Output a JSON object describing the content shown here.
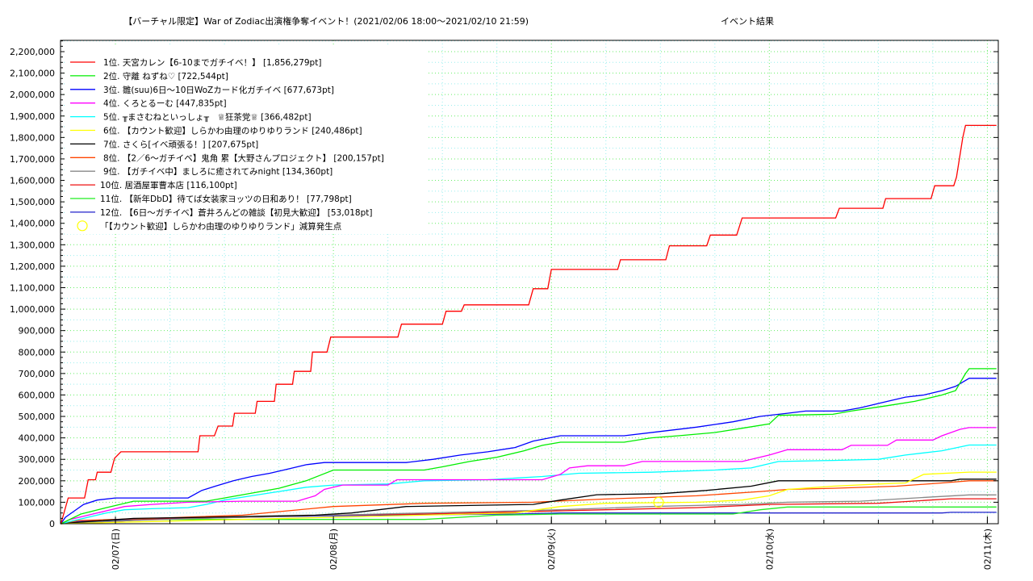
{
  "chart_data": {
    "type": "line",
    "title": "【バーチャル限定】War of Zodiac出演権争奪イベント！(2021/02/06 18:00〜2021/02/10 21:59)",
    "subtitle": "イベント結果",
    "xlabel": "",
    "ylabel": "",
    "x_unit": "hours since 2021/02/06 18:00",
    "xlim": [
      0,
      103.25
    ],
    "ylim": [
      0,
      2252600
    ],
    "grid": true,
    "legend_position": "top-left",
    "x_ticks": [
      {
        "h": 6,
        "label": "02/07(日)"
      },
      {
        "h": 30,
        "label": "02/08(月)"
      },
      {
        "h": 54,
        "label": "02/09(火)"
      },
      {
        "h": 78,
        "label": "02/10(水)"
      },
      {
        "h": 102,
        "label": "02/11(木)"
      }
    ],
    "y_ticks": [
      "0",
      "100,000",
      "200,000",
      "300,000",
      "400,000",
      "500,000",
      "600,000",
      "700,000",
      "800,000",
      "900,000",
      "1,000,000",
      "1,100,000",
      "1,200,000",
      "1,300,000",
      "1,400,000",
      "1,500,000",
      "1,600,000",
      "1,700,000",
      "1,800,000",
      "1,900,000",
      "2,000,000",
      "2,100,000",
      "2,200,000"
    ],
    "series": [
      {
        "name": "1位. 天宮カレン【6-10までガチイベ！】 [1,856,279pt]",
        "color": "#ff0000",
        "points": [
          [
            0,
            0
          ],
          [
            0.8,
            120000
          ],
          [
            2.6,
            120000
          ],
          [
            3,
            205000
          ],
          [
            3.8,
            205000
          ],
          [
            4,
            240000
          ],
          [
            5.5,
            240000
          ],
          [
            5.9,
            305000
          ],
          [
            6.6,
            335000
          ],
          [
            15.1,
            335000
          ],
          [
            15.3,
            410000
          ],
          [
            16.9,
            410000
          ],
          [
            17.3,
            455000
          ],
          [
            18.9,
            455000
          ],
          [
            19.1,
            515000
          ],
          [
            21.4,
            515000
          ],
          [
            21.6,
            570000
          ],
          [
            23.5,
            570000
          ],
          [
            23.7,
            650000
          ],
          [
            25.5,
            650000
          ],
          [
            25.7,
            710000
          ],
          [
            27.5,
            710000
          ],
          [
            27.7,
            800000
          ],
          [
            29.3,
            800000
          ],
          [
            29.7,
            870000
          ],
          [
            37.1,
            870000
          ],
          [
            37.5,
            930000
          ],
          [
            42,
            930000
          ],
          [
            42.4,
            990000
          ],
          [
            44.1,
            990000
          ],
          [
            44.4,
            1020000
          ],
          [
            51.5,
            1020000
          ],
          [
            52,
            1095000
          ],
          [
            53.6,
            1095000
          ],
          [
            54,
            1185000
          ],
          [
            61.3,
            1185000
          ],
          [
            61.6,
            1230000
          ],
          [
            66.6,
            1230000
          ],
          [
            67,
            1295000
          ],
          [
            71.1,
            1295000
          ],
          [
            71.5,
            1345000
          ],
          [
            74.4,
            1345000
          ],
          [
            75,
            1425000
          ],
          [
            85.3,
            1425000
          ],
          [
            85.7,
            1470000
          ],
          [
            90.5,
            1470000
          ],
          [
            90.8,
            1515000
          ],
          [
            95.8,
            1515000
          ],
          [
            96.2,
            1575000
          ],
          [
            98.3,
            1575000
          ],
          [
            98.6,
            1615000
          ],
          [
            99.3,
            1800000
          ],
          [
            99.6,
            1856279
          ],
          [
            103,
            1856279
          ]
        ]
      },
      {
        "name": "2位. 守離 ねずね♡ [722,544pt]",
        "color": "#00ee00",
        "points": [
          [
            0,
            0
          ],
          [
            2.2,
            45000
          ],
          [
            5,
            75000
          ],
          [
            8,
            105000
          ],
          [
            16,
            105000
          ],
          [
            20,
            135000
          ],
          [
            24,
            165000
          ],
          [
            27,
            200000
          ],
          [
            28.5,
            225000
          ],
          [
            30,
            250000
          ],
          [
            40,
            250000
          ],
          [
            42,
            265000
          ],
          [
            45,
            290000
          ],
          [
            48,
            310000
          ],
          [
            51,
            340000
          ],
          [
            53,
            365000
          ],
          [
            55,
            380000
          ],
          [
            62,
            380000
          ],
          [
            65,
            400000
          ],
          [
            68,
            410000
          ],
          [
            72,
            425000
          ],
          [
            75,
            445000
          ],
          [
            78,
            465000
          ],
          [
            79,
            505000
          ],
          [
            85,
            510000
          ],
          [
            87,
            525000
          ],
          [
            91,
            550000
          ],
          [
            94,
            570000
          ],
          [
            97,
            600000
          ],
          [
            98.5,
            620000
          ],
          [
            99.6,
            700000
          ],
          [
            100,
            722544
          ],
          [
            103,
            722544
          ]
        ]
      },
      {
        "name": "3位. 雛(suu)6日〜10日WoZカード化ガチイベ [677,673pt]",
        "color": "#0000ff",
        "points": [
          [
            0,
            0
          ],
          [
            0.5,
            30000
          ],
          [
            1.5,
            60000
          ],
          [
            2.5,
            90000
          ],
          [
            4,
            110000
          ],
          [
            6,
            120000
          ],
          [
            14,
            120000
          ],
          [
            15.5,
            155000
          ],
          [
            17,
            175000
          ],
          [
            19,
            200000
          ],
          [
            21,
            220000
          ],
          [
            23,
            235000
          ],
          [
            25,
            255000
          ],
          [
            27,
            275000
          ],
          [
            29,
            285000
          ],
          [
            38,
            285000
          ],
          [
            41,
            300000
          ],
          [
            44,
            320000
          ],
          [
            47,
            335000
          ],
          [
            50,
            355000
          ],
          [
            52,
            385000
          ],
          [
            55,
            410000
          ],
          [
            62,
            410000
          ],
          [
            66,
            430000
          ],
          [
            70,
            450000
          ],
          [
            74,
            475000
          ],
          [
            77,
            500000
          ],
          [
            80,
            515000
          ],
          [
            82,
            525000
          ],
          [
            86,
            525000
          ],
          [
            88,
            540000
          ],
          [
            91,
            570000
          ],
          [
            93,
            590000
          ],
          [
            95,
            600000
          ],
          [
            97,
            620000
          ],
          [
            98.5,
            640000
          ],
          [
            100,
            677673
          ],
          [
            103,
            677673
          ]
        ]
      },
      {
        "name": "4位. くろとるーむ [447,835pt]",
        "color": "#ff00ff",
        "points": [
          [
            0,
            0
          ],
          [
            1,
            20000
          ],
          [
            3,
            40000
          ],
          [
            5,
            60000
          ],
          [
            7,
            80000
          ],
          [
            10,
            90000
          ],
          [
            14,
            100000
          ],
          [
            20,
            105000
          ],
          [
            26,
            105000
          ],
          [
            28,
            130000
          ],
          [
            29,
            160000
          ],
          [
            31,
            180000
          ],
          [
            36,
            180000
          ],
          [
            37,
            205000
          ],
          [
            53,
            205000
          ],
          [
            55,
            230000
          ],
          [
            56,
            260000
          ],
          [
            58,
            270000
          ],
          [
            62,
            270000
          ],
          [
            64,
            290000
          ],
          [
            75,
            290000
          ],
          [
            78,
            320000
          ],
          [
            80,
            345000
          ],
          [
            86,
            345000
          ],
          [
            87,
            365000
          ],
          [
            91,
            365000
          ],
          [
            92,
            390000
          ],
          [
            96,
            390000
          ],
          [
            97,
            410000
          ],
          [
            99,
            440000
          ],
          [
            100,
            447835
          ],
          [
            103,
            447835
          ]
        ]
      },
      {
        "name": "5位. ╥まさむねといっしょ╥　♕狂茶党♕ [366,482pt]",
        "color": "#00ffff",
        "points": [
          [
            0,
            0
          ],
          [
            1,
            10000
          ],
          [
            3,
            30000
          ],
          [
            5,
            50000
          ],
          [
            7,
            65000
          ],
          [
            10,
            70000
          ],
          [
            14,
            75000
          ],
          [
            16,
            90000
          ],
          [
            18,
            110000
          ],
          [
            21,
            130000
          ],
          [
            24,
            150000
          ],
          [
            27,
            170000
          ],
          [
            30,
            180000
          ],
          [
            36,
            185000
          ],
          [
            40,
            200000
          ],
          [
            47,
            205000
          ],
          [
            53,
            220000
          ],
          [
            57,
            235000
          ],
          [
            65,
            240000
          ],
          [
            72,
            250000
          ],
          [
            76,
            260000
          ],
          [
            79,
            290000
          ],
          [
            85,
            295000
          ],
          [
            90,
            300000
          ],
          [
            93,
            320000
          ],
          [
            97,
            340000
          ],
          [
            100,
            366482
          ],
          [
            103,
            366482
          ]
        ]
      },
      {
        "name": "6位. 【カウント歓迎】しらかわ由理のゆりゆりランド [240,486pt]",
        "color": "#ffff00",
        "points": [
          [
            0,
            0
          ],
          [
            10,
            10000
          ],
          [
            20,
            20000
          ],
          [
            30,
            30000
          ],
          [
            40,
            40000
          ],
          [
            50,
            50000
          ],
          [
            55,
            80000
          ],
          [
            60,
            95000
          ],
          [
            70,
            100000
          ],
          [
            75,
            110000
          ],
          [
            78,
            130000
          ],
          [
            80,
            160000
          ],
          [
            85,
            175000
          ],
          [
            90,
            185000
          ],
          [
            93,
            190000
          ],
          [
            95,
            230000
          ],
          [
            100,
            240486
          ],
          [
            103,
            240486
          ]
        ]
      },
      {
        "name": "7位. さくら[イベ頑張る！] [207,675pt]",
        "color": "#000000",
        "points": [
          [
            0,
            0
          ],
          [
            3,
            10000
          ],
          [
            8,
            25000
          ],
          [
            16,
            30000
          ],
          [
            28,
            40000
          ],
          [
            32,
            50000
          ],
          [
            38,
            80000
          ],
          [
            45,
            85000
          ],
          [
            52,
            90000
          ],
          [
            55,
            110000
          ],
          [
            59,
            135000
          ],
          [
            66,
            140000
          ],
          [
            71,
            155000
          ],
          [
            76,
            175000
          ],
          [
            79,
            200000
          ],
          [
            98,
            200000
          ],
          [
            99,
            207675
          ],
          [
            103,
            207675
          ]
        ]
      },
      {
        "name": "8位. 【2／6〜ガチイベ】鬼角 累【大野さんプロジェクト】 [200,157pt]",
        "color": "#ff4500",
        "points": [
          [
            0,
            0
          ],
          [
            2,
            15000
          ],
          [
            10,
            25000
          ],
          [
            20,
            40000
          ],
          [
            25,
            60000
          ],
          [
            30,
            80000
          ],
          [
            40,
            95000
          ],
          [
            52,
            100000
          ],
          [
            60,
            115000
          ],
          [
            70,
            130000
          ],
          [
            77,
            150000
          ],
          [
            80,
            160000
          ],
          [
            85,
            165000
          ],
          [
            92,
            175000
          ],
          [
            97,
            190000
          ],
          [
            100,
            200157
          ],
          [
            103,
            200157
          ]
        ]
      },
      {
        "name": "9位. 【ガチイベ中】ましろに癒されてみnight [134,360pt]",
        "color": "#888888",
        "points": [
          [
            0,
            0
          ],
          [
            2,
            5000
          ],
          [
            8,
            15000
          ],
          [
            15,
            25000
          ],
          [
            25,
            35000
          ],
          [
            35,
            45000
          ],
          [
            45,
            55000
          ],
          [
            55,
            65000
          ],
          [
            65,
            80000
          ],
          [
            75,
            90000
          ],
          [
            80,
            100000
          ],
          [
            88,
            105000
          ],
          [
            96,
            125000
          ],
          [
            100,
            134360
          ],
          [
            103,
            134360
          ]
        ]
      },
      {
        "name": "10位. 居酒屋軍曹本店 [116,100pt]",
        "color": "#ee1111",
        "points": [
          [
            0,
            0
          ],
          [
            3,
            5000
          ],
          [
            10,
            20000
          ],
          [
            20,
            30000
          ],
          [
            30,
            40000
          ],
          [
            40,
            45000
          ],
          [
            50,
            55000
          ],
          [
            60,
            65000
          ],
          [
            70,
            75000
          ],
          [
            78,
            90000
          ],
          [
            90,
            95000
          ],
          [
            98,
            116100
          ],
          [
            103,
            116100
          ]
        ]
      },
      {
        "name": "11位. 【新年DbD】待てば女装家ヨッツの日和あり！ [77,798pt]",
        "color": "#22ee22",
        "points": [
          [
            0,
            0
          ],
          [
            5,
            10000
          ],
          [
            10,
            20000
          ],
          [
            40,
            20000
          ],
          [
            48,
            40000
          ],
          [
            55,
            45000
          ],
          [
            74,
            45000
          ],
          [
            77,
            65000
          ],
          [
            80,
            77798
          ],
          [
            103,
            77798
          ]
        ]
      },
      {
        "name": "12位. 【6日〜ガチイベ】蒼井ろんどの雑談【初見大歓迎】 [53,018pt]",
        "color": "#2222cc",
        "points": [
          [
            0,
            0
          ],
          [
            2,
            10000
          ],
          [
            8,
            20000
          ],
          [
            20,
            30000
          ],
          [
            35,
            40000
          ],
          [
            50,
            45000
          ],
          [
            55,
            50000
          ],
          [
            97,
            50000
          ],
          [
            98,
            53018
          ],
          [
            103,
            53018
          ]
        ]
      }
    ],
    "markers": {
      "name": "「【カウント歓迎】しらかわ由理のゆりゆりランド」減算発生点",
      "color": "#ffff00",
      "points": [
        [
          65.8,
          100000
        ]
      ]
    }
  }
}
